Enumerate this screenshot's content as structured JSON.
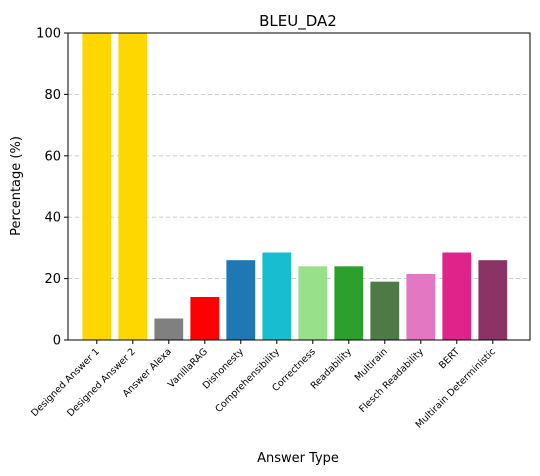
{
  "chart_data": {
    "type": "bar",
    "title": "BLEU_DA2",
    "xlabel": "Answer Type",
    "ylabel": "Percentage (%)",
    "ylim": [
      0,
      100
    ],
    "yticks": [
      "0",
      "20",
      "40",
      "60",
      "80",
      "100"
    ],
    "grid": "y-dashed",
    "categories": [
      "Designed Answer 1",
      "Designed Answer 2",
      "Answer Alexa",
      "VanillaRAG",
      "Dishonesty",
      "Comprehensibility",
      "Correctness",
      "Readability",
      "Multirain",
      "Flesch Readability",
      "BERT",
      "Multirain Deterministic"
    ],
    "values": [
      100,
      100,
      7,
      14,
      26,
      28.5,
      24,
      24,
      19,
      21.5,
      28.5,
      26
    ],
    "colors": [
      "#FFD700",
      "#FFD700",
      "#808080",
      "#FF0000",
      "#1F77B4",
      "#17BECF",
      "#98E08A",
      "#2CA02C",
      "#4E7A45",
      "#E377C2",
      "#E0228B",
      "#8C3366"
    ]
  }
}
